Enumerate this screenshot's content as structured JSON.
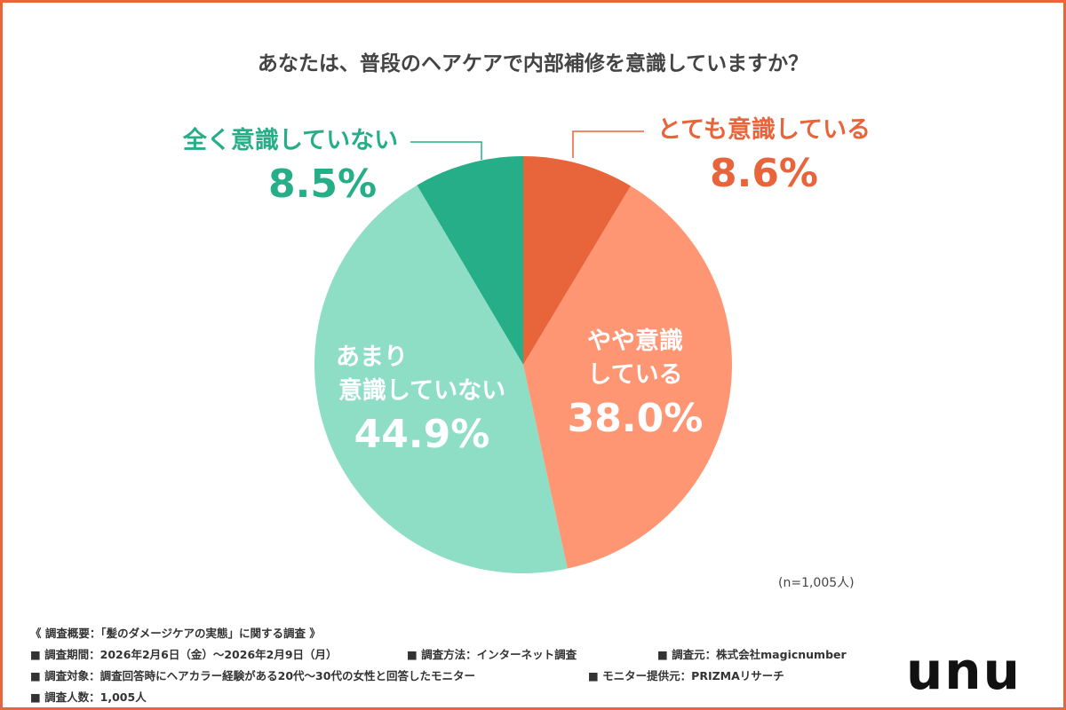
{
  "chart_data": {
    "type": "pie",
    "title": "あなたは、普段のヘアケアで内部補修を意識していますか？",
    "slices": [
      {
        "label": "とても意識している",
        "value": 8.6,
        "display": "8.6%",
        "color": "#E8643A"
      },
      {
        "label": "やや意識している",
        "value": 38.0,
        "display": "38.0%",
        "color": "#FF9673"
      },
      {
        "label": "あまり意識していない",
        "value": 44.9,
        "display": "44.9%",
        "color": "#8EDEC6"
      },
      {
        "label": "全く意識していない",
        "value": 8.5,
        "display": "8.5%",
        "color": "#26AE88"
      }
    ],
    "start": "top",
    "direction": "clockwise",
    "sample_note": "(n=1,005人)"
  },
  "labels": {
    "s1_name": "とても意識している",
    "s2_name_line1": "やや意識",
    "s2_name_line2": "している",
    "s3_name_line1": "あまり",
    "s3_name_line2": "意識していない",
    "s4_name": "全く意識していない"
  },
  "footer": {
    "heading": "《 調査概要：「髪のダメージケアの実態」に関する調査 》",
    "period": "■ 調査期間：2026年2月6日（金）～2026年2月9日（月）",
    "method": "■ 調査方法：インターネット調査",
    "source": "■ 調査元：株式会社magicnumber",
    "target": "■ 調査対象：調査回答時にヘアカラー経験がある20代～30代の女性と回答したモニター",
    "provider": "■ モニター提供元：PRIZMAリサーチ",
    "count": "■ 調査人数：1,005人"
  },
  "logo": "UNU"
}
